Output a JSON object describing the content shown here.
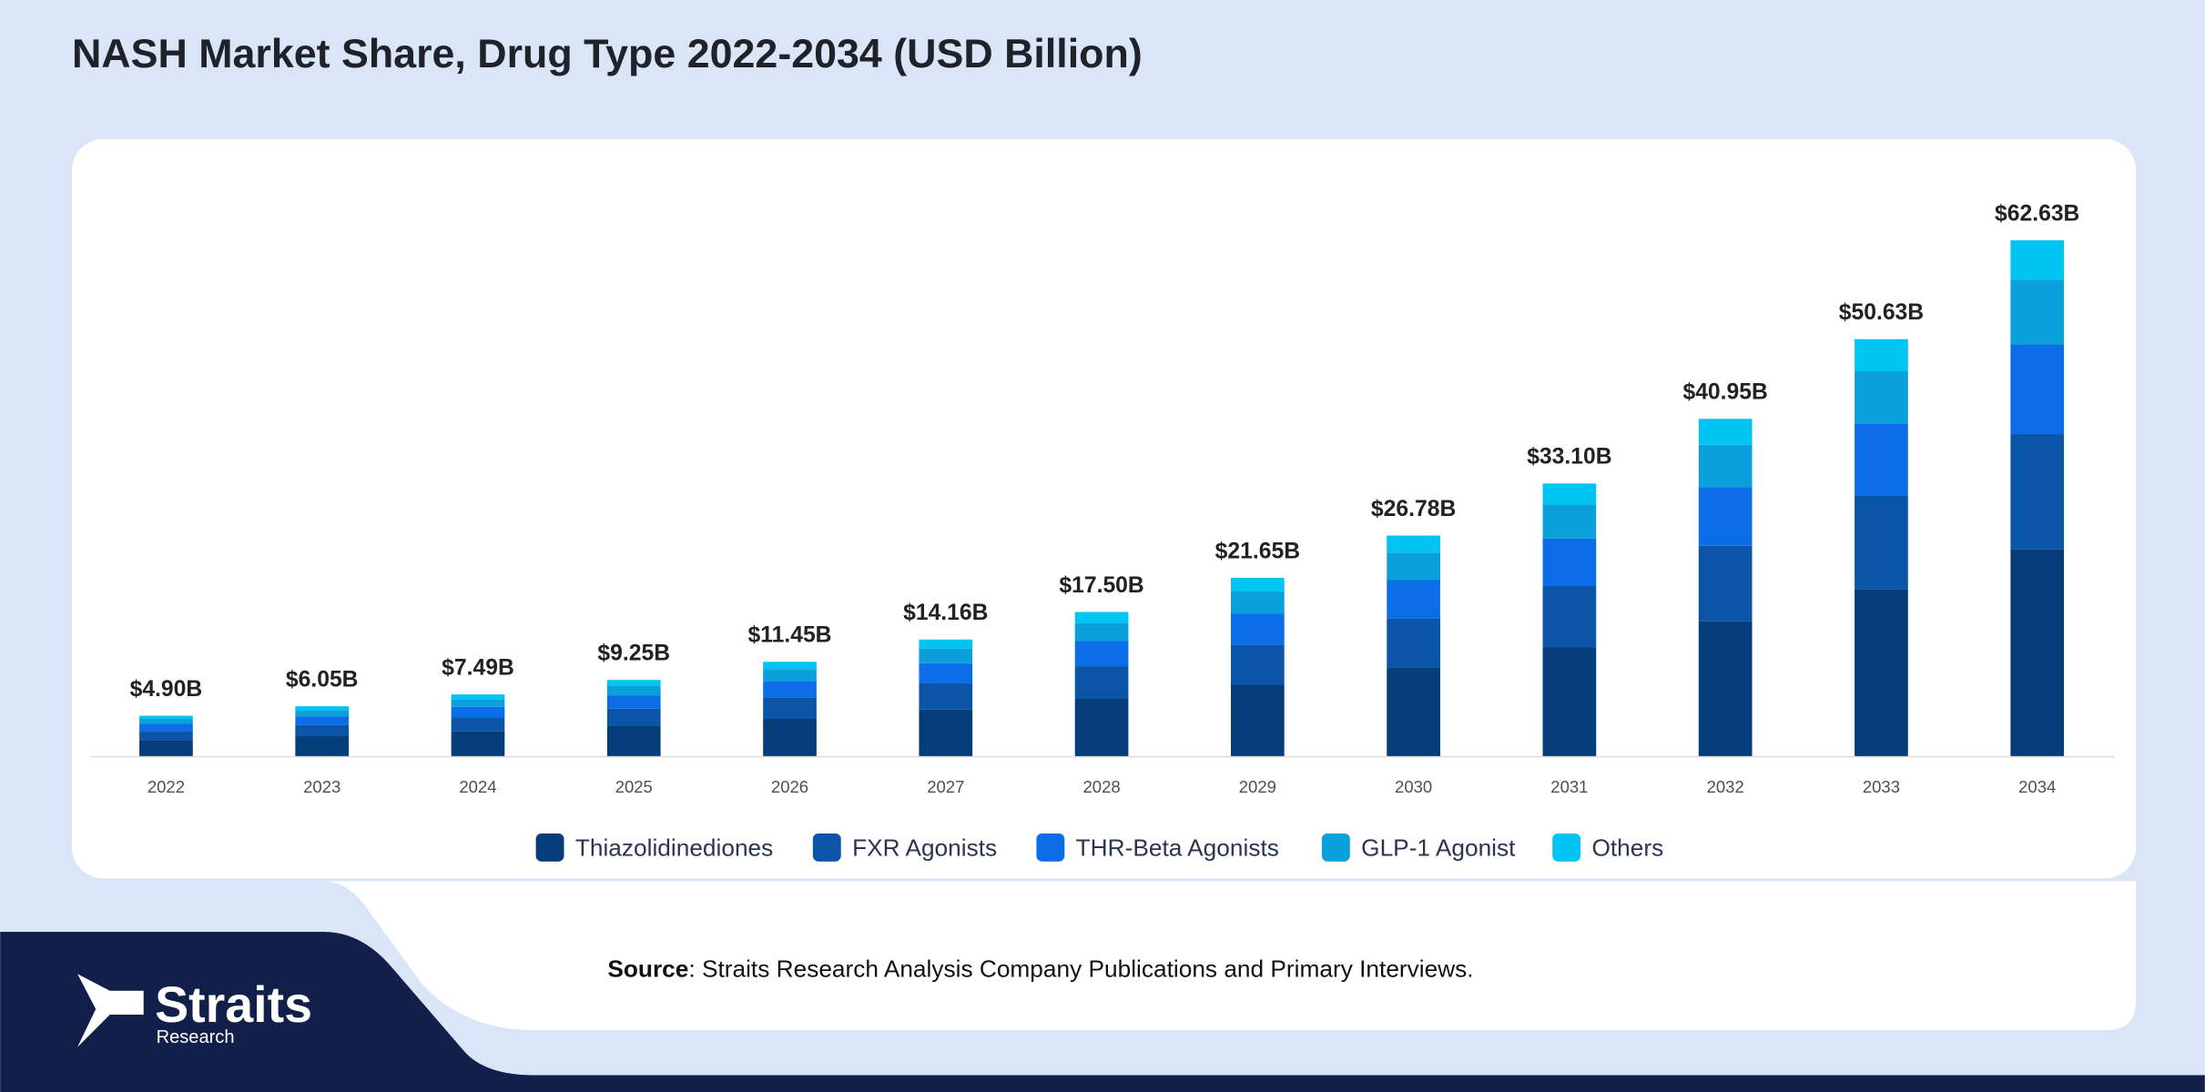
{
  "chart_data": {
    "type": "stacked-bar",
    "title": "NASH Market Share, Drug Type 2022-2034 (USD Billion)",
    "categories": [
      "2022",
      "2023",
      "2024",
      "2025",
      "2026",
      "2027",
      "2028",
      "2029",
      "2030",
      "2031",
      "2032",
      "2033",
      "2034"
    ],
    "series": [
      {
        "name": "Thiazolidinediones",
        "color": "#053d7a",
        "values": [
          1.96,
          2.42,
          3.0,
          3.7,
          4.58,
          5.66,
          7.0,
          8.66,
          10.71,
          13.24,
          16.38,
          20.25,
          25.1
        ]
      },
      {
        "name": "FXR Agonists",
        "color": "#0b55a8",
        "values": [
          1.1,
          1.36,
          1.68,
          2.07,
          2.56,
          3.17,
          3.92,
          4.85,
          6.0,
          7.41,
          9.17,
          11.34,
          14.0
        ]
      },
      {
        "name": "THR-Beta Agonists",
        "color": "#0b6ee8",
        "values": [
          0.85,
          1.05,
          1.3,
          1.61,
          1.99,
          2.46,
          3.05,
          3.77,
          4.66,
          5.76,
          7.13,
          8.81,
          10.9
        ]
      },
      {
        "name": "GLP-1 Agonist",
        "color": "#0aa0dc",
        "values": [
          0.61,
          0.76,
          0.94,
          1.16,
          1.43,
          1.77,
          2.19,
          2.71,
          3.35,
          4.14,
          5.12,
          6.33,
          7.85
        ]
      },
      {
        "name": "Others",
        "color": "#00c4f2",
        "values": [
          0.38,
          0.46,
          0.57,
          0.71,
          0.89,
          1.1,
          1.34,
          1.66,
          2.06,
          2.55,
          3.15,
          3.9,
          4.78
        ]
      }
    ],
    "totals": {
      "values": [
        4.9,
        6.05,
        7.49,
        9.25,
        11.45,
        14.16,
        17.5,
        21.65,
        26.78,
        33.1,
        40.95,
        50.63,
        62.63
      ],
      "value_labels": [
        "$4.90B",
        "$6.05B",
        "$7.49B",
        "$9.25B",
        "$11.45B",
        "$14.16B",
        "$17.50B",
        "$21.65B",
        "$26.78B",
        "$33.10B",
        "$40.95B",
        "$50.63B",
        "$62.63B"
      ]
    },
    "legend": "bottom",
    "source_label": "Source",
    "source_text": ": Straits Research Analysis Company Publications and Primary Interviews."
  },
  "logo": {
    "name": "Straits",
    "subtitle": "Research"
  }
}
